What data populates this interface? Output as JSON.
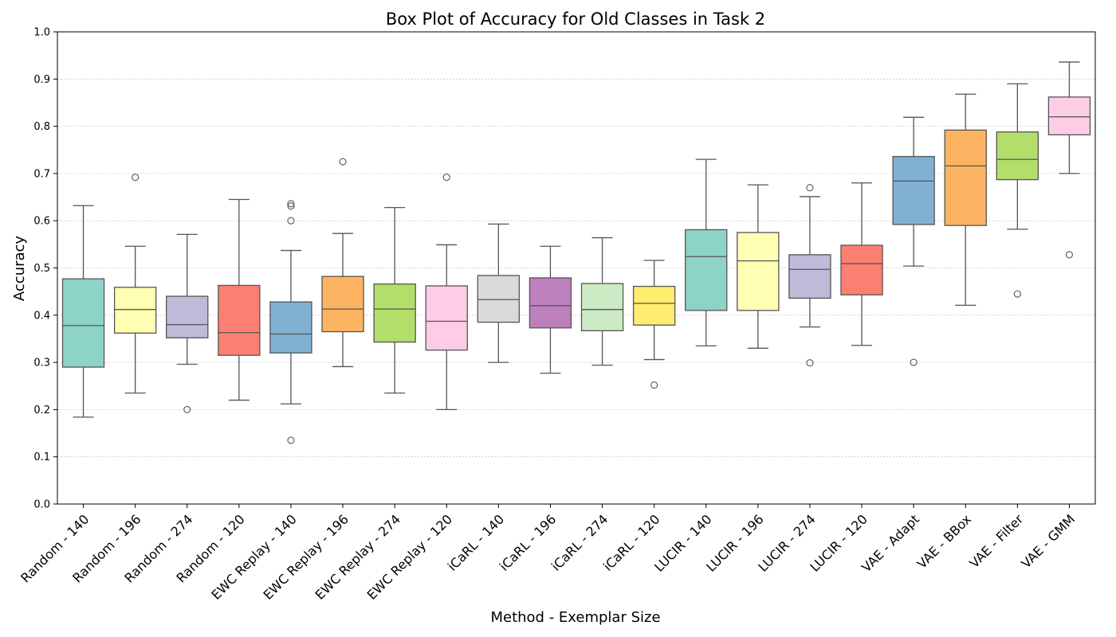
{
  "chart_data": {
    "type": "box",
    "title": "Box Plot of Accuracy for Old Classes in Task 2",
    "xlabel": "Method - Exemplar Size",
    "ylabel": "Accuracy",
    "ylim": [
      0.0,
      1.0
    ],
    "yticks": [
      "0.0",
      "0.1",
      "0.2",
      "0.3",
      "0.4",
      "0.5",
      "0.6",
      "0.7",
      "0.8",
      "0.9",
      "1.0"
    ],
    "grid": "horizontal dotted",
    "categories": [
      "Random - 140",
      "Random - 196",
      "Random - 274",
      "Random - 120",
      "EWC Replay - 140",
      "EWC Replay - 196",
      "EWC Replay - 274",
      "EWC Replay - 120",
      "iCaRL - 140",
      "iCaRL - 196",
      "iCaRL - 274",
      "iCaRL - 120",
      "LUCIR - 140",
      "LUCIR - 196",
      "LUCIR - 274",
      "LUCIR - 120",
      "VAE - Adapt",
      "VAE - BBox",
      "VAE - Filter",
      "VAE - GMM"
    ],
    "boxes": [
      {
        "q1": 0.29,
        "median": 0.378,
        "q3": 0.477,
        "whisker_low": 0.184,
        "whisker_high": 0.632,
        "outliers": [],
        "color": "#8dd3c7"
      },
      {
        "q1": 0.362,
        "median": 0.412,
        "q3": 0.459,
        "whisker_low": 0.235,
        "whisker_high": 0.546,
        "outliers": [
          0.692
        ],
        "color": "#ffffb3"
      },
      {
        "q1": 0.352,
        "median": 0.38,
        "q3": 0.44,
        "whisker_low": 0.296,
        "whisker_high": 0.571,
        "outliers": [
          0.2
        ],
        "color": "#bebada"
      },
      {
        "q1": 0.315,
        "median": 0.363,
        "q3": 0.463,
        "whisker_low": 0.22,
        "whisker_high": 0.645,
        "outliers": [],
        "color": "#fb8072"
      },
      {
        "q1": 0.32,
        "median": 0.36,
        "q3": 0.428,
        "whisker_low": 0.212,
        "whisker_high": 0.537,
        "outliers": [
          0.636,
          0.631,
          0.6,
          0.135
        ],
        "color": "#80b1d3"
      },
      {
        "q1": 0.365,
        "median": 0.413,
        "q3": 0.482,
        "whisker_low": 0.291,
        "whisker_high": 0.573,
        "outliers": [
          0.725
        ],
        "color": "#fdb462"
      },
      {
        "q1": 0.343,
        "median": 0.413,
        "q3": 0.466,
        "whisker_low": 0.235,
        "whisker_high": 0.628,
        "outliers": [],
        "color": "#b3de69"
      },
      {
        "q1": 0.326,
        "median": 0.387,
        "q3": 0.462,
        "whisker_low": 0.2,
        "whisker_high": 0.549,
        "outliers": [
          0.692
        ],
        "color": "#fccde5"
      },
      {
        "q1": 0.385,
        "median": 0.433,
        "q3": 0.484,
        "whisker_low": 0.3,
        "whisker_high": 0.593,
        "outliers": [],
        "color": "#d9d9d9"
      },
      {
        "q1": 0.373,
        "median": 0.42,
        "q3": 0.479,
        "whisker_low": 0.277,
        "whisker_high": 0.546,
        "outliers": [],
        "color": "#bc80bd"
      },
      {
        "q1": 0.367,
        "median": 0.412,
        "q3": 0.467,
        "whisker_low": 0.294,
        "whisker_high": 0.564,
        "outliers": [],
        "color": "#ccebc5"
      },
      {
        "q1": 0.379,
        "median": 0.425,
        "q3": 0.461,
        "whisker_low": 0.306,
        "whisker_high": 0.516,
        "outliers": [
          0.252
        ],
        "color": "#ffed6f"
      },
      {
        "q1": 0.41,
        "median": 0.524,
        "q3": 0.581,
        "whisker_low": 0.335,
        "whisker_high": 0.73,
        "outliers": [],
        "color": "#8dd3c7"
      },
      {
        "q1": 0.41,
        "median": 0.515,
        "q3": 0.575,
        "whisker_low": 0.33,
        "whisker_high": 0.676,
        "outliers": [],
        "color": "#ffffb3"
      },
      {
        "q1": 0.436,
        "median": 0.497,
        "q3": 0.528,
        "whisker_low": 0.375,
        "whisker_high": 0.651,
        "outliers": [
          0.67,
          0.299
        ],
        "color": "#bebada"
      },
      {
        "q1": 0.443,
        "median": 0.509,
        "q3": 0.548,
        "whisker_low": 0.336,
        "whisker_high": 0.68,
        "outliers": [],
        "color": "#fb8072"
      },
      {
        "q1": 0.592,
        "median": 0.684,
        "q3": 0.736,
        "whisker_low": 0.504,
        "whisker_high": 0.819,
        "outliers": [
          0.3
        ],
        "color": "#80b1d3"
      },
      {
        "q1": 0.59,
        "median": 0.716,
        "q3": 0.792,
        "whisker_low": 0.421,
        "whisker_high": 0.868,
        "outliers": [],
        "color": "#fdb462"
      },
      {
        "q1": 0.687,
        "median": 0.73,
        "q3": 0.788,
        "whisker_low": 0.582,
        "whisker_high": 0.89,
        "outliers": [
          0.445
        ],
        "color": "#b3de69"
      },
      {
        "q1": 0.782,
        "median": 0.82,
        "q3": 0.862,
        "whisker_low": 0.7,
        "whisker_high": 0.936,
        "outliers": [
          0.528
        ],
        "color": "#fccde5"
      }
    ]
  }
}
